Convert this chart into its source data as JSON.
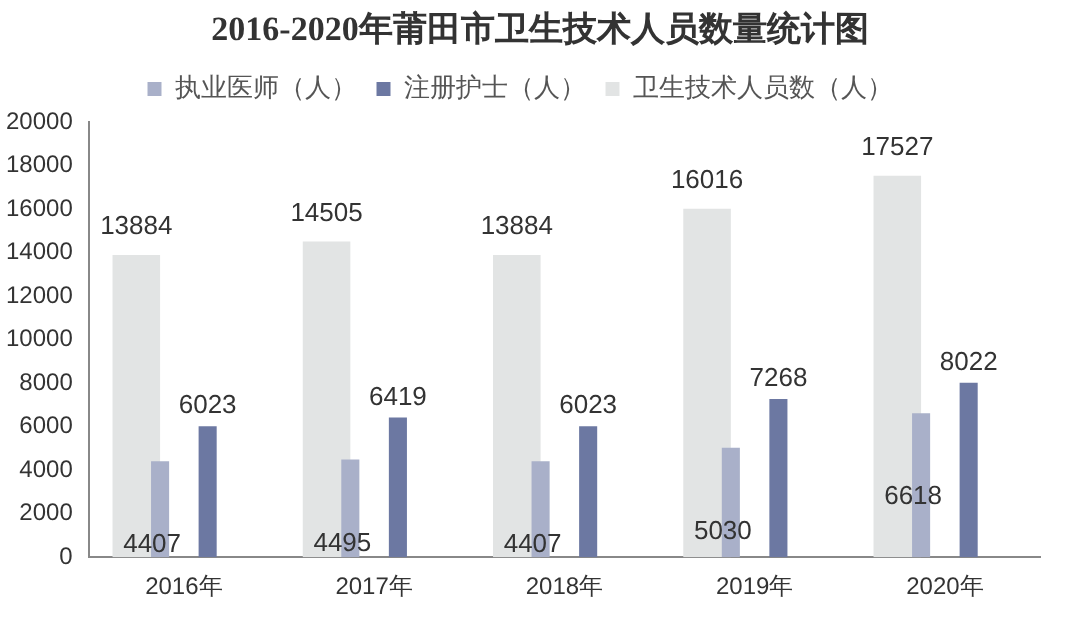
{
  "chart_data": {
    "type": "bar",
    "title": "2016-2020年莆田市卫生技术人员数量统计图",
    "categories": [
      "2016年",
      "2017年",
      "2018年",
      "2019年",
      "2020年"
    ],
    "series": [
      {
        "name": "卫生技术人员数（人）",
        "color": "#e2e4e4",
        "values": [
          13884,
          14505,
          13884,
          16016,
          17527
        ]
      },
      {
        "name": "执业医师（人）",
        "color": "#a9b0c9",
        "values": [
          4407,
          4495,
          4407,
          5030,
          6618
        ]
      },
      {
        "name": "注册护士（人）",
        "color": "#6c78a2",
        "values": [
          6023,
          6419,
          6023,
          7268,
          8022
        ]
      }
    ],
    "ylim": [
      0,
      20000
    ],
    "yticks": [
      0,
      2000,
      4000,
      6000,
      8000,
      10000,
      12000,
      14000,
      16000,
      18000,
      20000
    ],
    "grid": false,
    "legend": "top",
    "data_labels": true
  }
}
